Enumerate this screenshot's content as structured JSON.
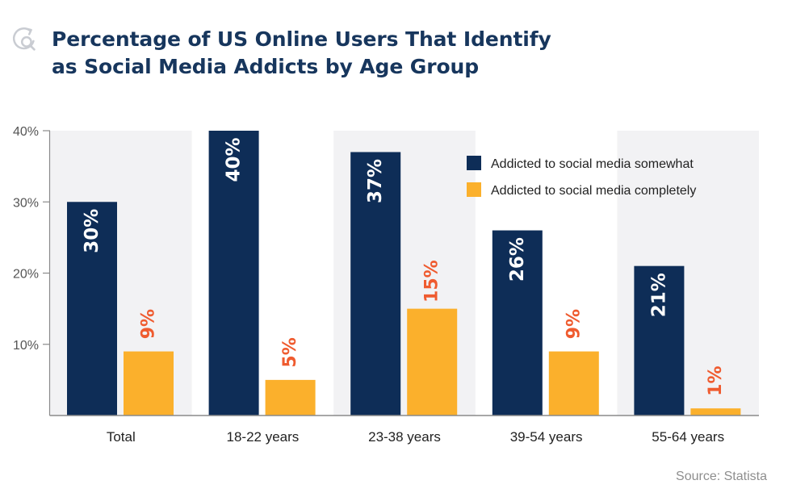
{
  "header": {
    "title_line1": "Percentage of US Online Users That Identify",
    "title_line2": "as Social Media Addicts by Age Group",
    "logo_icon": "refresh-search-icon"
  },
  "source": "Source: Statista",
  "colors": {
    "navy": "#0e2d57",
    "orange": "#fbb02c",
    "orange_label": "#ef5b2f",
    "band": "#f2f2f4",
    "title": "#17365d"
  },
  "chart_data": {
    "type": "bar",
    "title": "Percentage of US Online Users That Identify as Social Media Addicts by Age Group",
    "categories": [
      "Total",
      "18-22 years",
      "23-38 years",
      "39-54 years",
      "55-64 years"
    ],
    "series": [
      {
        "name": "Addicted to social media somewhat",
        "values": [
          30,
          40,
          37,
          26,
          21
        ],
        "labels": [
          "30%",
          "40%",
          "37%",
          "26%",
          "21%"
        ],
        "color": "#0e2d57"
      },
      {
        "name": "Addicted to social media completely",
        "values": [
          9,
          5,
          15,
          9,
          1
        ],
        "labels": [
          "9%",
          "5%",
          "15%",
          "9%",
          "1%"
        ],
        "color": "#fbb02c"
      }
    ],
    "yticks": [
      "10%",
      "20%",
      "30%",
      "40%"
    ],
    "ylim": [
      0,
      40
    ],
    "xlabel": "",
    "ylabel": "",
    "legend_position": "top-right",
    "grid": false
  }
}
